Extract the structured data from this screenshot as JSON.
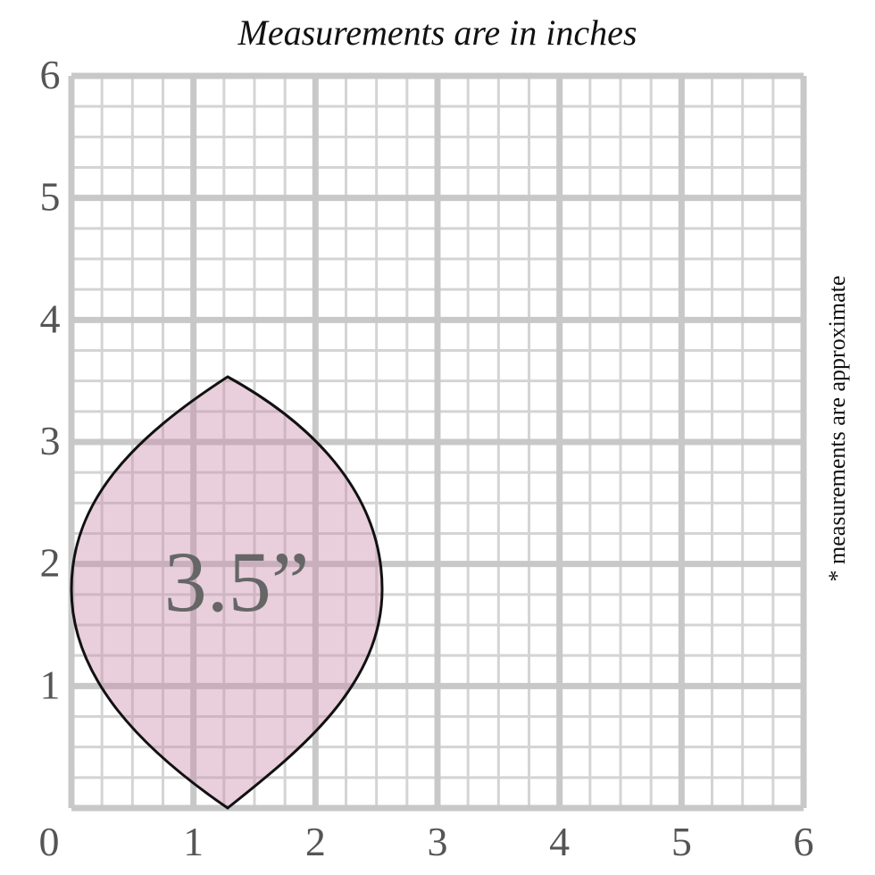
{
  "title": "Measurements are in inches",
  "note": "* measurements are approximate",
  "shape_label": "3.5”",
  "xticks": [
    0,
    1,
    2,
    3,
    4,
    5,
    6
  ],
  "yticks": [
    0,
    1,
    2,
    3,
    4,
    5,
    6
  ]
}
